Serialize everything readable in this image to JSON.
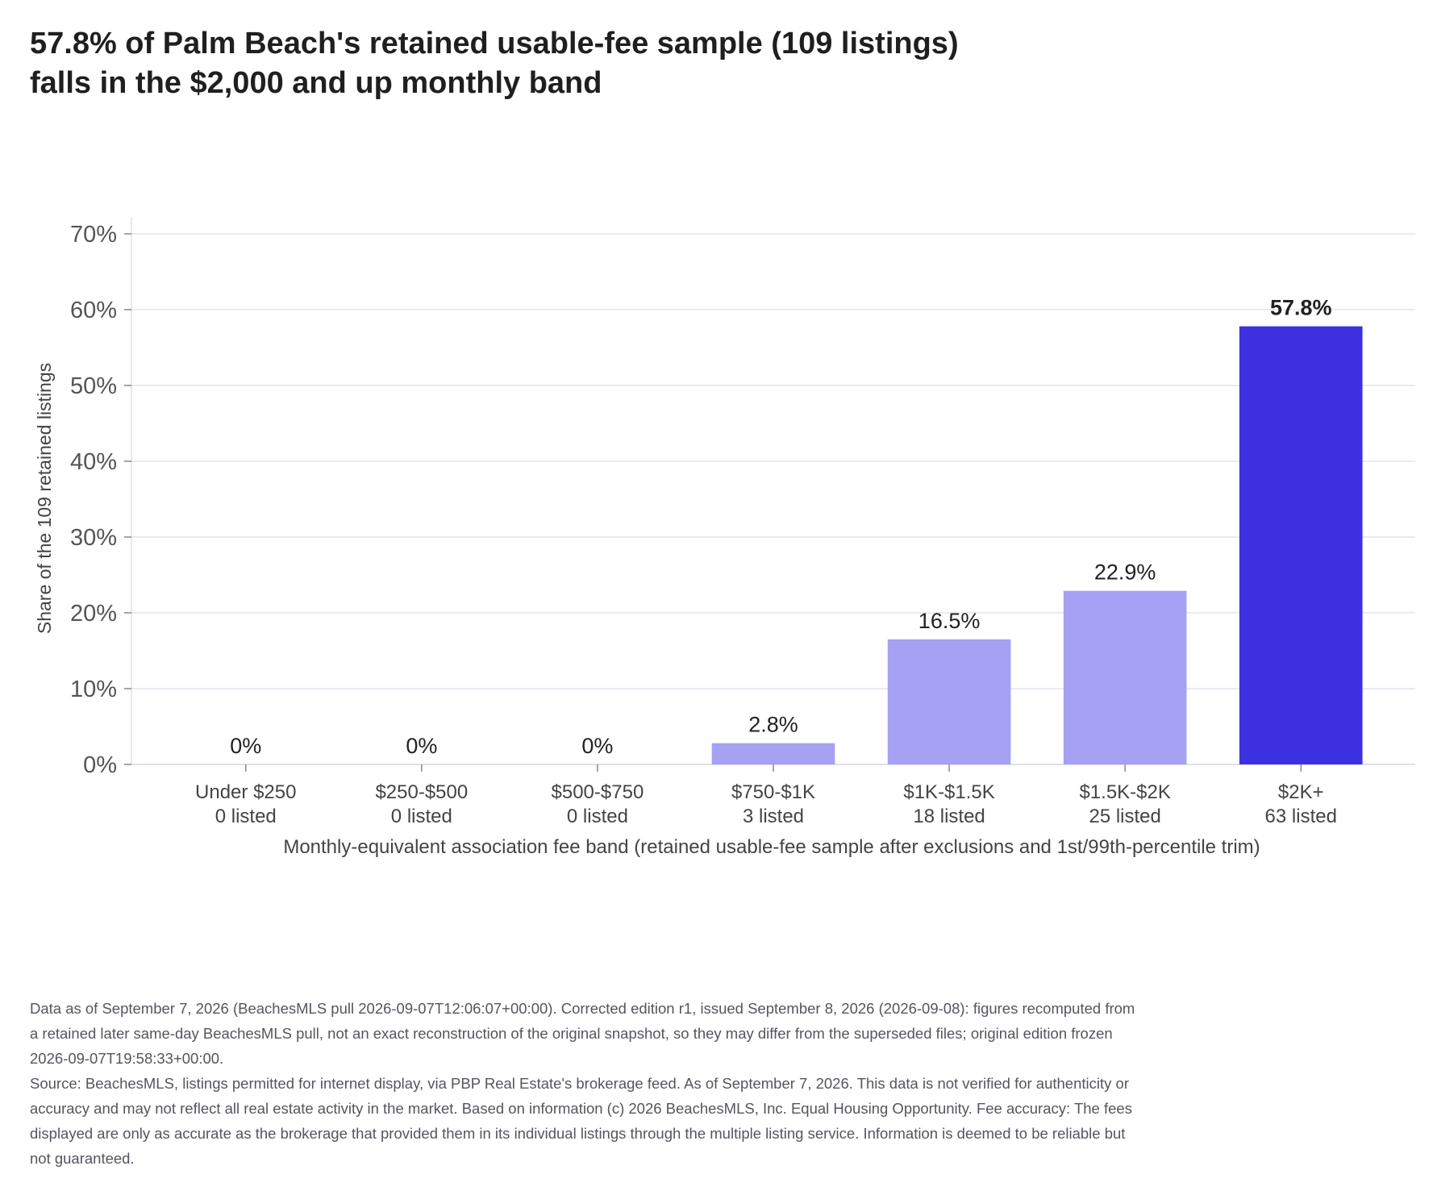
{
  "title_lines": [
    "57.8% of Palm Beach's retained usable-fee sample (109 listings)",
    "falls in the $2,000 and up monthly band"
  ],
  "chart_data": {
    "type": "bar",
    "categories": [
      "Under $250",
      "$250-$500",
      "$500-$750",
      "$750-$1K",
      "$1K-$1.5K",
      "$1.5K-$2K",
      "$2K+"
    ],
    "category_counts": [
      "0 listed",
      "0 listed",
      "0 listed",
      "3 listed",
      "18 listed",
      "25 listed",
      "63 listed"
    ],
    "values": [
      0,
      0,
      0,
      2.8,
      16.5,
      22.9,
      57.8
    ],
    "value_labels": [
      "0%",
      "0%",
      "0%",
      "2.8%",
      "16.5%",
      "22.9%",
      "57.8%"
    ],
    "highlight_index": 6,
    "ylabel": "Share of the 109 retained listings",
    "xlabel": "Monthly-equivalent association fee band (retained usable-fee sample after exclusions and 1st/99th-percentile trim)",
    "ylim": [
      0,
      70
    ],
    "yticks": [
      0,
      10,
      20,
      30,
      40,
      50,
      60,
      70
    ],
    "ytick_labels": [
      "0%",
      "10%",
      "20%",
      "30%",
      "40%",
      "50%",
      "60%",
      "70%"
    ],
    "grid": true,
    "colors": {
      "bar": "#a6a1f2",
      "highlight": "#3d30e0",
      "grid": "#e3e3f0",
      "axis": "#e0e0ea"
    }
  },
  "footer": {
    "note": "Data as of September 7, 2026 (BeachesMLS pull 2026-09-07T12:06:07+00:00). Corrected edition r1, issued September 8, 2026 (2026-09-08): figures recomputed from a retained later same-day BeachesMLS pull, not an exact reconstruction of the original snapshot, so they may differ from the superseded files; original edition frozen 2026-09-07T19:58:33+00:00.",
    "source": "Source: BeachesMLS, listings permitted for internet display, via PBP Real Estate's brokerage feed. As of September 7, 2026. This data is not verified for authenticity or accuracy and may not reflect all real estate activity in the market. Based on information (c) 2026 BeachesMLS, Inc. Equal Housing Opportunity. Fee accuracy: The fees displayed are only as accurate as the brokerage that provided them in its individual listings through the multiple listing service. Information is deemed to be reliable but not guaranteed."
  }
}
